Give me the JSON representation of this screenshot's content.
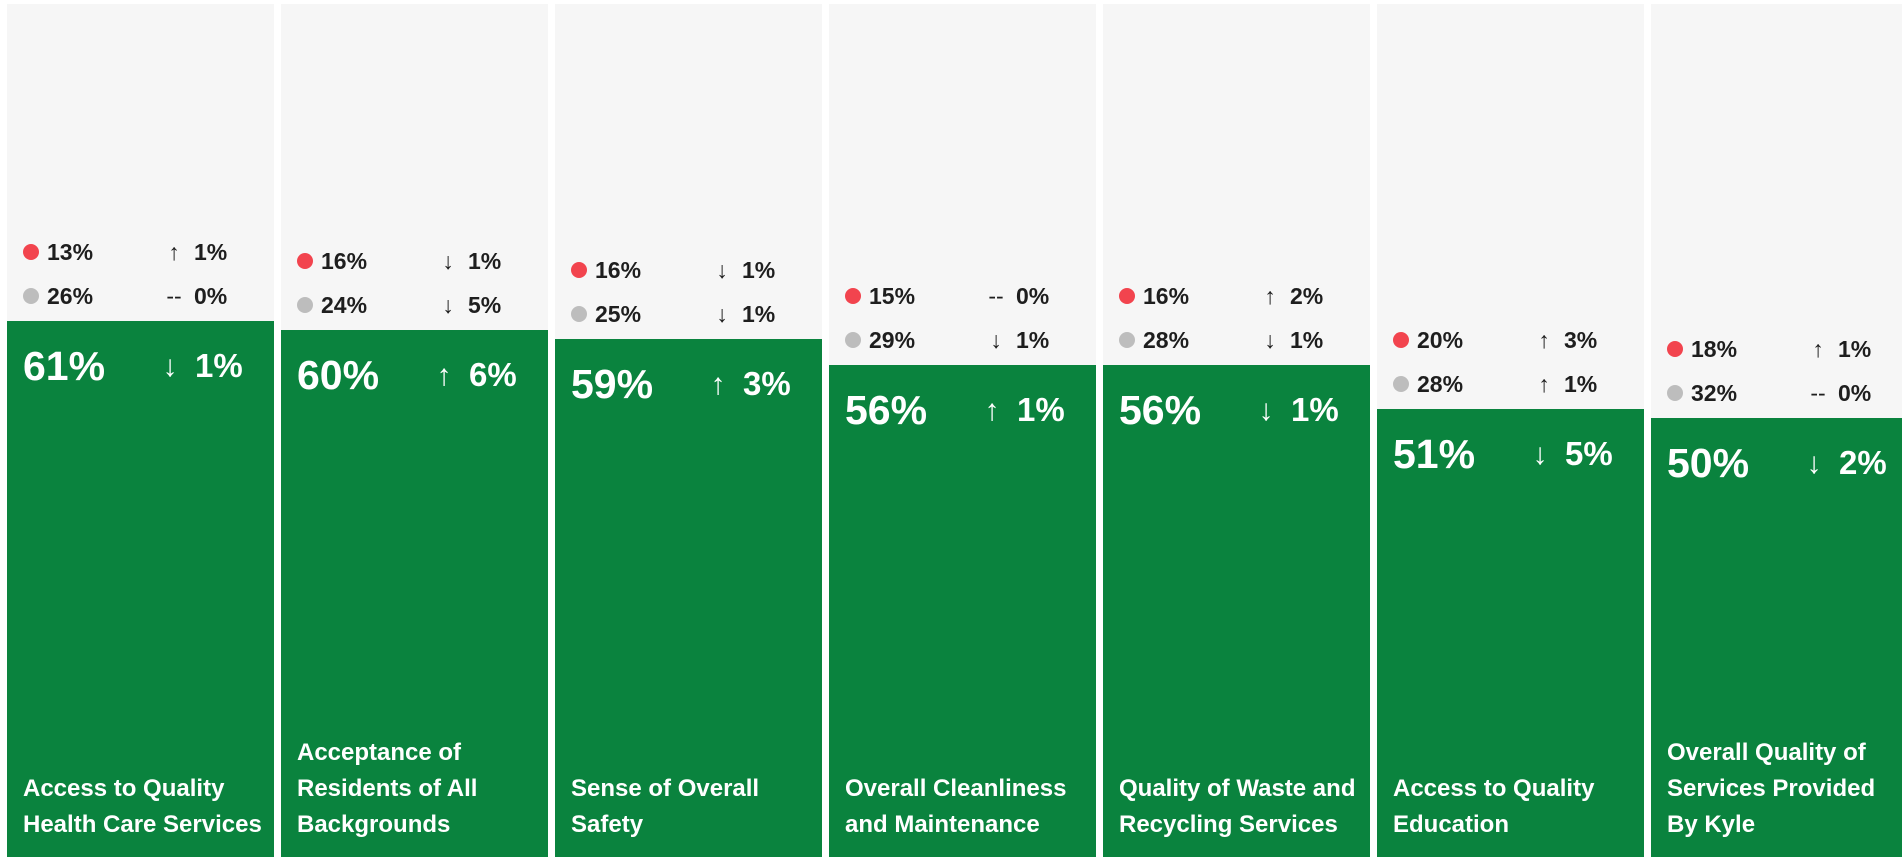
{
  "chart_data": {
    "type": "bar",
    "ylim": [
      0,
      100
    ],
    "categories": [
      "Access to Quality Health Care Services",
      "Acceptance of Residents of All Backgrounds",
      "Sense of Overall Safety",
      "Overall Cleanliness and Maintenance",
      "Quality of Waste and Recycling Services",
      "Access to Quality Education",
      "Overall Quality of Services Provided By Kyle"
    ],
    "bars": [
      {
        "label": "Access to Quality Health Care Services",
        "value": 61,
        "value_text": "61%",
        "change_dir": "down",
        "change_arrow": "↓",
        "change_text": "1%",
        "red": {
          "value": 13,
          "value_text": "13%",
          "change_dir": "up",
          "change_arrow": "↑",
          "change_text": "1%"
        },
        "grey": {
          "value": 26,
          "value_text": "26%",
          "change_dir": "flat",
          "change_arrow": "--",
          "change_text": "0%"
        }
      },
      {
        "label": "Acceptance of Residents of All Backgrounds",
        "value": 60,
        "value_text": "60%",
        "change_dir": "up",
        "change_arrow": "↑",
        "change_text": "6%",
        "red": {
          "value": 16,
          "value_text": "16%",
          "change_dir": "down",
          "change_arrow": "↓",
          "change_text": "1%"
        },
        "grey": {
          "value": 24,
          "value_text": "24%",
          "change_dir": "down",
          "change_arrow": "↓",
          "change_text": "5%"
        }
      },
      {
        "label": "Sense of Overall Safety",
        "value": 59,
        "value_text": "59%",
        "change_dir": "up",
        "change_arrow": "↑",
        "change_text": "3%",
        "red": {
          "value": 16,
          "value_text": "16%",
          "change_dir": "down",
          "change_arrow": "↓",
          "change_text": "1%"
        },
        "grey": {
          "value": 25,
          "value_text": "25%",
          "change_dir": "down",
          "change_arrow": "↓",
          "change_text": "1%"
        }
      },
      {
        "label": "Overall Cleanliness and Maintenance",
        "value": 56,
        "value_text": "56%",
        "change_dir": "up",
        "change_arrow": "↑",
        "change_text": "1%",
        "red": {
          "value": 15,
          "value_text": "15%",
          "change_dir": "flat",
          "change_arrow": "--",
          "change_text": "0%"
        },
        "grey": {
          "value": 29,
          "value_text": "29%",
          "change_dir": "down",
          "change_arrow": "↓",
          "change_text": "1%"
        }
      },
      {
        "label": "Quality of Waste and Recycling Services",
        "value": 56,
        "value_text": "56%",
        "change_dir": "down",
        "change_arrow": "↓",
        "change_text": "1%",
        "red": {
          "value": 16,
          "value_text": "16%",
          "change_dir": "up",
          "change_arrow": "↑",
          "change_text": "2%"
        },
        "grey": {
          "value": 28,
          "value_text": "28%",
          "change_dir": "down",
          "change_arrow": "↓",
          "change_text": "1%"
        }
      },
      {
        "label": "Access to Quality Education",
        "value": 51,
        "value_text": "51%",
        "change_dir": "down",
        "change_arrow": "↓",
        "change_text": "5%",
        "red": {
          "value": 20,
          "value_text": "20%",
          "change_dir": "up",
          "change_arrow": "↑",
          "change_text": "3%"
        },
        "grey": {
          "value": 28,
          "value_text": "28%",
          "change_dir": "up",
          "change_arrow": "↑",
          "change_text": "1%"
        }
      },
      {
        "label": "Overall Quality of Services Provided By Kyle",
        "value": 50,
        "value_text": "50%",
        "change_dir": "down",
        "change_arrow": "↓",
        "change_text": "2%",
        "red": {
          "value": 18,
          "value_text": "18%",
          "change_dir": "up",
          "change_arrow": "↑",
          "change_text": "1%"
        },
        "grey": {
          "value": 32,
          "value_text": "32%",
          "change_dir": "flat",
          "change_arrow": "--",
          "change_text": "0%"
        }
      }
    ],
    "colors": {
      "bar": "#0a833e",
      "background": "#f6f6f6",
      "red_dot": "#f2444e",
      "grey_dot": "#bdbdbd"
    }
  }
}
